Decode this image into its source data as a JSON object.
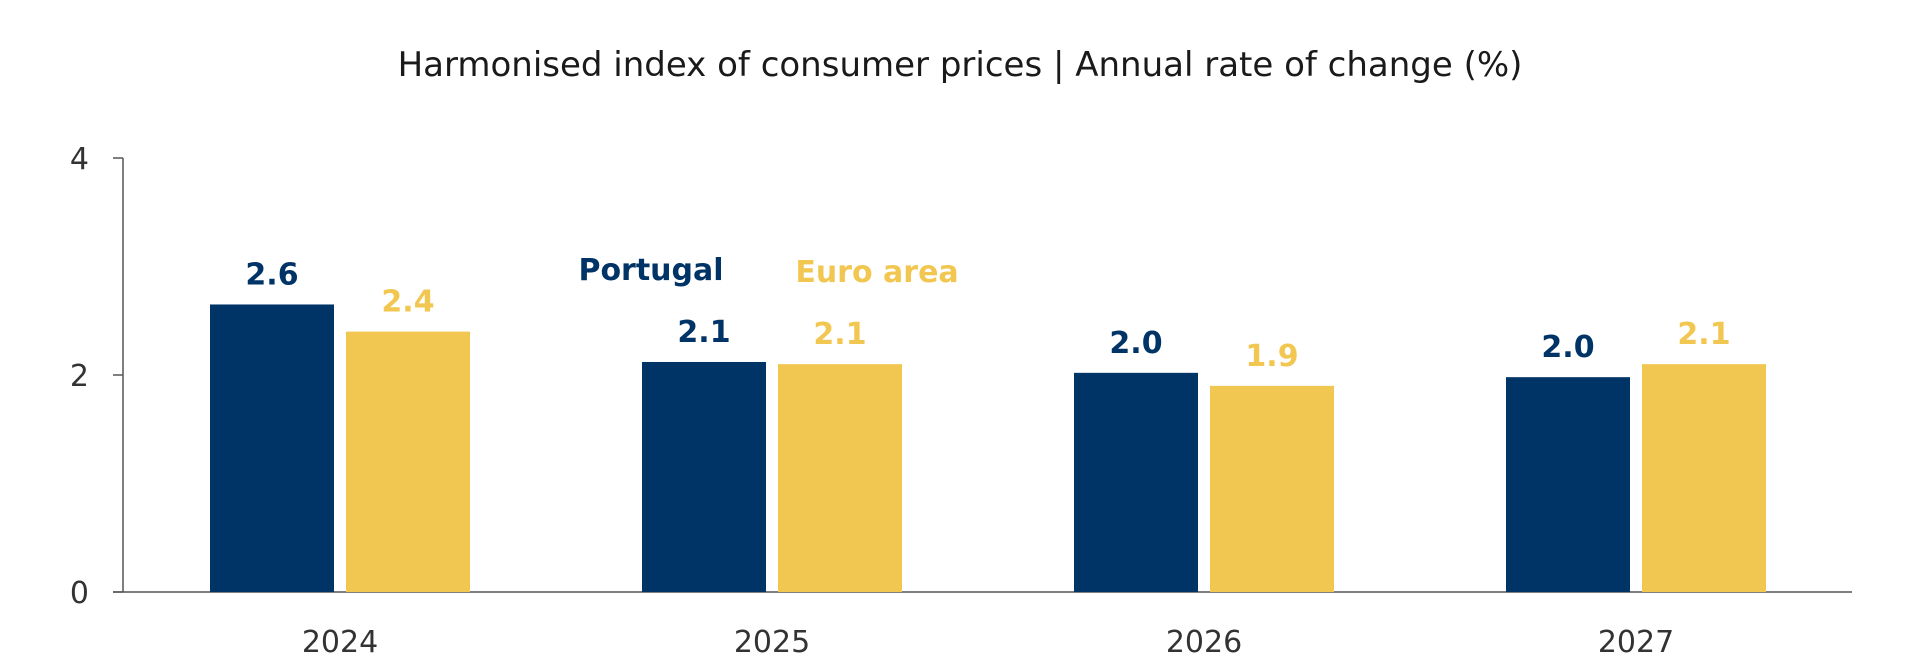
{
  "chart_data": {
    "type": "bar",
    "title": "Harmonised index of consumer prices | Annual rate of change (%)",
    "xlabel": "",
    "ylabel": "",
    "categories": [
      "2024",
      "2025",
      "2026",
      "2027"
    ],
    "ylim": [
      0,
      4
    ],
    "yticks": [
      0,
      2,
      4
    ],
    "ytick_labels": [
      "0",
      "2",
      "4"
    ],
    "grid": false,
    "legend_position": "top-center",
    "series": [
      {
        "name": "Portugal",
        "color": "#003366",
        "values": [
          2.65,
          2.12,
          2.02,
          1.98
        ],
        "labels": [
          "2.6",
          "2.1",
          "2.0",
          "2.0"
        ]
      },
      {
        "name": "Euro area",
        "color": "#f2c751",
        "values": [
          2.4,
          2.1,
          1.9,
          2.1
        ],
        "labels": [
          "2.4",
          "2.1",
          "1.9",
          "2.1"
        ]
      }
    ]
  }
}
